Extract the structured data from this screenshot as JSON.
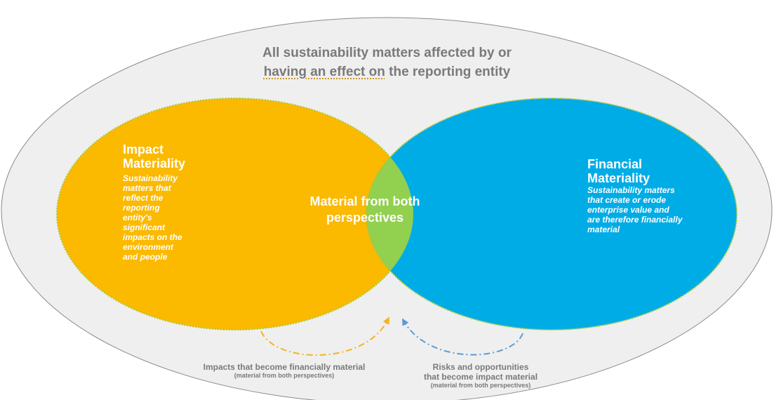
{
  "title": {
    "line1": "All sustainability matters affected by or",
    "line2_underlined": "having an effect on",
    "line2_rest": " the reporting entity"
  },
  "impact": {
    "heading": "Impact Materiality",
    "description": "Sustainability\n matters that\nreflect  the\nreporting\nentity's\nsignificant\nimpacts on the\nenvironment\nand people"
  },
  "financial": {
    "heading": "Financial Materiality",
    "description": "Sustainability matters\nthat create or erode\nenterprise value and\nare therefore financially\nmaterial"
  },
  "overlap": {
    "label": "Material from both\nperspectives"
  },
  "captions": {
    "left": {
      "main": "Impacts that become financially material",
      "sub": "(material from both perspectives)"
    },
    "right": {
      "main": "Risks and opportunities\nthat become impact material",
      "sub": "(material from both perspectives)"
    }
  },
  "colors": {
    "outer_fill": "#efefef",
    "outer_stroke": "#8a8a8a",
    "impact": "#fbb900",
    "financial": "#00ace6",
    "overlap": "#92d050",
    "arrow_left": "#f5b41e",
    "arrow_right": "#5b9bd5",
    "text_gray": "#7a7a7a"
  }
}
